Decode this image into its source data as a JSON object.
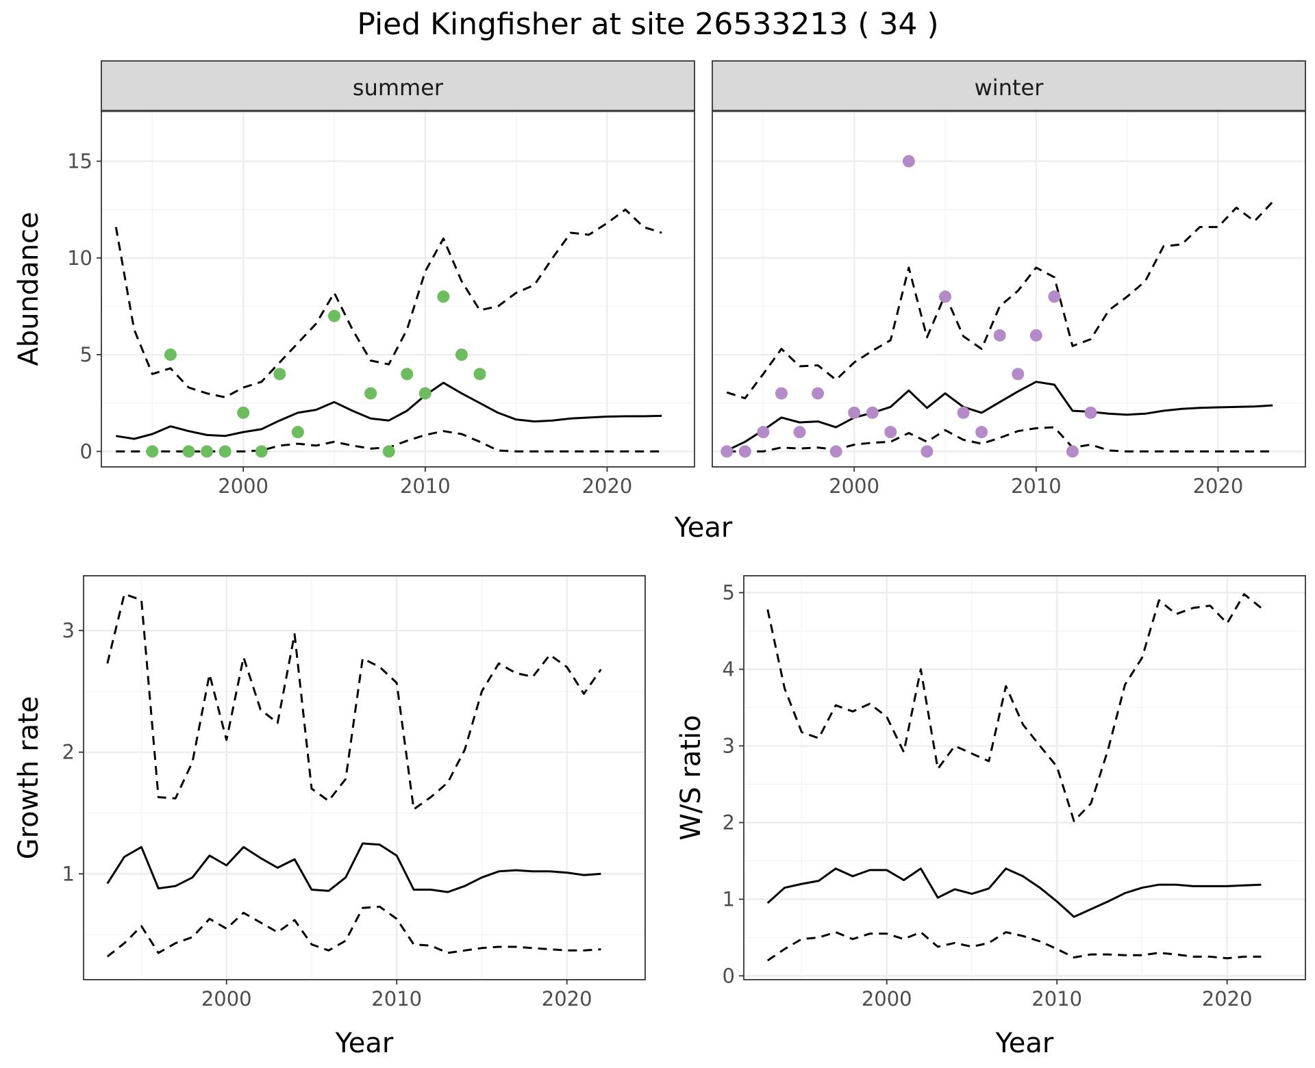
{
  "title": "Pied Kingfisher at site 26533213 ( 34 )",
  "colors": {
    "summer_points": "#6cbd5e",
    "winter_points": "#b28bc8",
    "lines": "#000000",
    "strip_bg": "#d9d9d9"
  },
  "chart_data": [
    {
      "type": "line",
      "facets": [
        "summer",
        "winter"
      ],
      "xlabel": "Year",
      "ylabel": "Abundance",
      "xlim": [
        1992.2,
        2024.8
      ],
      "ylim": [
        -0.8,
        17.6
      ],
      "xticks": [
        2000,
        2010,
        2020
      ],
      "yticks": [
        0,
        5,
        10,
        15
      ],
      "grid": true,
      "panels": [
        {
          "name": "summer",
          "point_color": "#6cbd5e",
          "points": {
            "x": [
              1995,
              1996,
              1997,
              1998,
              1999,
              2000,
              2001,
              2002,
              2003,
              2005,
              2007,
              2008,
              2009,
              2010,
              2011,
              2012,
              2013
            ],
            "y": [
              0,
              5,
              0,
              0,
              0,
              2,
              0,
              4,
              1,
              7,
              3,
              0,
              4,
              3,
              8,
              5,
              4
            ]
          },
          "series": [
            {
              "style": "solid",
              "x": [
                1993,
                1994,
                1995,
                1996,
                1997,
                1998,
                1999,
                2000,
                2001,
                2002,
                2003,
                2004,
                2005,
                2006,
                2007,
                2008,
                2009,
                2010,
                2011,
                2012,
                2013,
                2014,
                2015,
                2016,
                2017,
                2018,
                2019,
                2020,
                2021,
                2022,
                2023
              ],
              "y": [
                0.8,
                0.65,
                0.9,
                1.3,
                1.05,
                0.85,
                0.8,
                1.0,
                1.15,
                1.6,
                2.0,
                2.15,
                2.55,
                2.1,
                1.7,
                1.6,
                2.1,
                2.9,
                3.55,
                3.0,
                2.5,
                2.0,
                1.65,
                1.55,
                1.6,
                1.7,
                1.75,
                1.8,
                1.82,
                1.82,
                1.84
              ]
            },
            {
              "style": "dashed",
              "x": [
                1993,
                1994,
                1995,
                1996,
                1997,
                1998,
                1999,
                2000,
                2001,
                2002,
                2003,
                2004,
                2005,
                2006,
                2007,
                2008,
                2009,
                2010,
                2011,
                2012,
                2013,
                2014,
                2015,
                2016,
                2017,
                2018,
                2019,
                2020,
                2021,
                2022,
                2023
              ],
              "y": [
                11.6,
                6.3,
                4.0,
                4.3,
                3.3,
                3.0,
                2.8,
                3.3,
                3.6,
                4.6,
                5.6,
                6.6,
                8.2,
                6.3,
                4.7,
                4.5,
                6.3,
                9.3,
                11.0,
                8.8,
                7.3,
                7.5,
                8.2,
                8.6,
                10.0,
                11.3,
                11.2,
                11.8,
                12.5,
                11.6,
                11.3
              ]
            },
            {
              "style": "dashed",
              "x": [
                1993,
                1994,
                1995,
                1996,
                1997,
                1998,
                1999,
                2000,
                2001,
                2002,
                2003,
                2004,
                2005,
                2006,
                2007,
                2008,
                2009,
                2010,
                2011,
                2012,
                2013,
                2014,
                2015,
                2016,
                2017,
                2018,
                2019,
                2020,
                2021,
                2022,
                2023
              ],
              "y": [
                0,
                0,
                0,
                0,
                0,
                0,
                0,
                0,
                0.05,
                0.3,
                0.4,
                0.3,
                0.5,
                0.3,
                0.15,
                0.2,
                0.55,
                0.85,
                1.05,
                0.9,
                0.5,
                0.05,
                0,
                0,
                0,
                0,
                0,
                0,
                0,
                0,
                0
              ]
            }
          ]
        },
        {
          "name": "winter",
          "point_color": "#b28bc8",
          "points": {
            "x": [
              1993,
              1994,
              1995,
              1996,
              1997,
              1998,
              1999,
              2000,
              2001,
              2002,
              2003,
              2004,
              2005,
              2006,
              2007,
              2008,
              2009,
              2010,
              2011,
              2012,
              2013
            ],
            "y": [
              0,
              0,
              1,
              3,
              1,
              3,
              0,
              2,
              2,
              1,
              15,
              0,
              8,
              2,
              1,
              6,
              4,
              6,
              8,
              0,
              2
            ]
          },
          "series": [
            {
              "style": "solid",
              "x": [
                1993,
                1994,
                1995,
                1996,
                1997,
                1998,
                1999,
                2000,
                2001,
                2002,
                2003,
                2004,
                2005,
                2006,
                2007,
                2008,
                2009,
                2010,
                2011,
                2012,
                2013,
                2014,
                2015,
                2016,
                2017,
                2018,
                2019,
                2020,
                2021,
                2022,
                2023
              ],
              "y": [
                0.05,
                0.5,
                1.1,
                1.75,
                1.5,
                1.55,
                1.25,
                1.75,
                2.0,
                2.3,
                3.15,
                2.25,
                3.0,
                2.3,
                2.0,
                2.55,
                3.1,
                3.6,
                3.45,
                2.1,
                2.05,
                1.95,
                1.9,
                1.95,
                2.1,
                2.2,
                2.25,
                2.28,
                2.3,
                2.32,
                2.38
              ]
            },
            {
              "style": "dashed",
              "x": [
                1993,
                1994,
                1995,
                1996,
                1997,
                1998,
                1999,
                2000,
                2001,
                2002,
                2003,
                2004,
                2005,
                2006,
                2007,
                2008,
                2009,
                2010,
                2011,
                2012,
                2013,
                2014,
                2015,
                2016,
                2017,
                2018,
                2019,
                2020,
                2021,
                2022,
                2023
              ],
              "y": [
                3.05,
                2.75,
                4.0,
                5.3,
                4.4,
                4.45,
                3.7,
                4.6,
                5.2,
                5.75,
                9.5,
                5.9,
                8.1,
                5.95,
                5.3,
                7.5,
                8.3,
                9.5,
                9.0,
                5.45,
                5.8,
                7.3,
                8.0,
                8.8,
                10.6,
                10.7,
                11.6,
                11.6,
                12.6,
                11.9,
                12.9
              ]
            },
            {
              "style": "dashed",
              "x": [
                1993,
                1994,
                1995,
                1996,
                1997,
                1998,
                1999,
                2000,
                2001,
                2002,
                2003,
                2004,
                2005,
                2006,
                2007,
                2008,
                2009,
                2010,
                2011,
                2012,
                2013,
                2014,
                2015,
                2016,
                2017,
                2018,
                2019,
                2020,
                2021,
                2022,
                2023
              ],
              "y": [
                0,
                0,
                0,
                0.2,
                0.15,
                0.2,
                0.1,
                0.35,
                0.45,
                0.5,
                0.95,
                0.5,
                1.1,
                0.6,
                0.4,
                0.7,
                1.05,
                1.2,
                1.25,
                0.2,
                0.35,
                0.05,
                0,
                0,
                0,
                0,
                0,
                0,
                0,
                0,
                0
              ]
            }
          ]
        }
      ]
    },
    {
      "type": "line",
      "xlabel": "Year",
      "ylabel": "Growth rate",
      "xlim": [
        1991.6,
        2024.6
      ],
      "ylim": [
        0.13,
        3.45
      ],
      "xticks": [
        2000,
        2010,
        2020
      ],
      "yticks": [
        1,
        2,
        3
      ],
      "grid": true,
      "series": [
        {
          "style": "solid",
          "x": [
            1993,
            1994,
            1995,
            1996,
            1997,
            1998,
            1999,
            2000,
            2001,
            2002,
            2003,
            2004,
            2005,
            2006,
            2007,
            2008,
            2009,
            2010,
            2011,
            2012,
            2013,
            2014,
            2015,
            2016,
            2017,
            2018,
            2019,
            2020,
            2021,
            2022
          ],
          "y": [
            0.92,
            1.14,
            1.22,
            0.88,
            0.9,
            0.97,
            1.15,
            1.07,
            1.22,
            1.13,
            1.05,
            1.12,
            0.87,
            0.86,
            0.97,
            1.25,
            1.24,
            1.15,
            0.87,
            0.87,
            0.85,
            0.9,
            0.97,
            1.02,
            1.03,
            1.02,
            1.02,
            1.01,
            0.99,
            1.0
          ]
        },
        {
          "style": "dashed",
          "x": [
            1993,
            1994,
            1995,
            1996,
            1997,
            1998,
            1999,
            2000,
            2001,
            2002,
            2003,
            2004,
            2005,
            2006,
            2007,
            2008,
            2009,
            2010,
            2011,
            2012,
            2013,
            2014,
            2015,
            2016,
            2017,
            2018,
            2019,
            2020,
            2021,
            2022
          ],
          "y": [
            2.73,
            3.3,
            3.25,
            1.63,
            1.62,
            1.92,
            2.64,
            2.1,
            2.78,
            2.35,
            2.24,
            2.97,
            1.7,
            1.6,
            1.78,
            2.77,
            2.7,
            2.57,
            1.53,
            1.63,
            1.75,
            2.02,
            2.5,
            2.73,
            2.65,
            2.62,
            2.8,
            2.7,
            2.48,
            2.68
          ]
        },
        {
          "style": "dashed",
          "x": [
            1993,
            1994,
            1995,
            1996,
            1997,
            1998,
            1999,
            2000,
            2001,
            2002,
            2003,
            2004,
            2005,
            2006,
            2007,
            2008,
            2009,
            2010,
            2011,
            2012,
            2013,
            2014,
            2015,
            2016,
            2017,
            2018,
            2019,
            2020,
            2021,
            2022
          ],
          "y": [
            0.32,
            0.43,
            0.57,
            0.35,
            0.43,
            0.48,
            0.63,
            0.55,
            0.68,
            0.6,
            0.52,
            0.62,
            0.42,
            0.37,
            0.45,
            0.72,
            0.73,
            0.63,
            0.42,
            0.41,
            0.35,
            0.37,
            0.39,
            0.4,
            0.4,
            0.39,
            0.38,
            0.37,
            0.37,
            0.38
          ]
        }
      ]
    },
    {
      "type": "line",
      "xlabel": "Year",
      "ylabel": "W/S ratio",
      "xlim": [
        1991.6,
        2024.6
      ],
      "ylim": [
        -0.05,
        5.22
      ],
      "xticks": [
        2000,
        2010,
        2020
      ],
      "yticks": [
        0,
        1,
        2,
        3,
        4,
        5
      ],
      "grid": true,
      "series": [
        {
          "style": "solid",
          "x": [
            1993,
            1994,
            1995,
            1996,
            1997,
            1998,
            1999,
            2000,
            2001,
            2002,
            2003,
            2004,
            2005,
            2006,
            2007,
            2008,
            2009,
            2010,
            2011,
            2012,
            2013,
            2014,
            2015,
            2016,
            2017,
            2018,
            2019,
            2020,
            2021,
            2022
          ],
          "y": [
            0.95,
            1.15,
            1.2,
            1.24,
            1.4,
            1.3,
            1.38,
            1.38,
            1.25,
            1.4,
            1.02,
            1.13,
            1.07,
            1.14,
            1.4,
            1.3,
            1.15,
            0.97,
            0.77,
            0.87,
            0.97,
            1.08,
            1.15,
            1.19,
            1.19,
            1.17,
            1.17,
            1.17,
            1.18,
            1.19
          ]
        },
        {
          "style": "dashed",
          "x": [
            1993,
            1994,
            1995,
            1996,
            1997,
            1998,
            1999,
            2000,
            2001,
            2002,
            2003,
            2004,
            2005,
            2006,
            2007,
            2008,
            2009,
            2010,
            2011,
            2012,
            2013,
            2014,
            2015,
            2016,
            2017,
            2018,
            2019,
            2020,
            2021,
            2022
          ],
          "y": [
            4.78,
            3.75,
            3.18,
            3.1,
            3.53,
            3.45,
            3.55,
            3.38,
            2.92,
            4.0,
            2.7,
            3.0,
            2.9,
            2.8,
            3.78,
            3.28,
            3.0,
            2.73,
            2.02,
            2.25,
            2.95,
            3.8,
            4.15,
            4.9,
            4.72,
            4.8,
            4.83,
            4.6,
            4.98,
            4.8
          ]
        },
        {
          "style": "dashed",
          "x": [
            1993,
            1994,
            1995,
            1996,
            1997,
            1998,
            1999,
            2000,
            2001,
            2002,
            2003,
            2004,
            2005,
            2006,
            2007,
            2008,
            2009,
            2010,
            2011,
            2012,
            2013,
            2014,
            2015,
            2016,
            2017,
            2018,
            2019,
            2020,
            2021,
            2022
          ],
          "y": [
            0.2,
            0.35,
            0.48,
            0.5,
            0.57,
            0.48,
            0.55,
            0.55,
            0.48,
            0.57,
            0.38,
            0.43,
            0.38,
            0.43,
            0.57,
            0.52,
            0.45,
            0.35,
            0.24,
            0.28,
            0.28,
            0.27,
            0.27,
            0.3,
            0.28,
            0.25,
            0.25,
            0.23,
            0.25,
            0.25
          ]
        }
      ]
    }
  ]
}
